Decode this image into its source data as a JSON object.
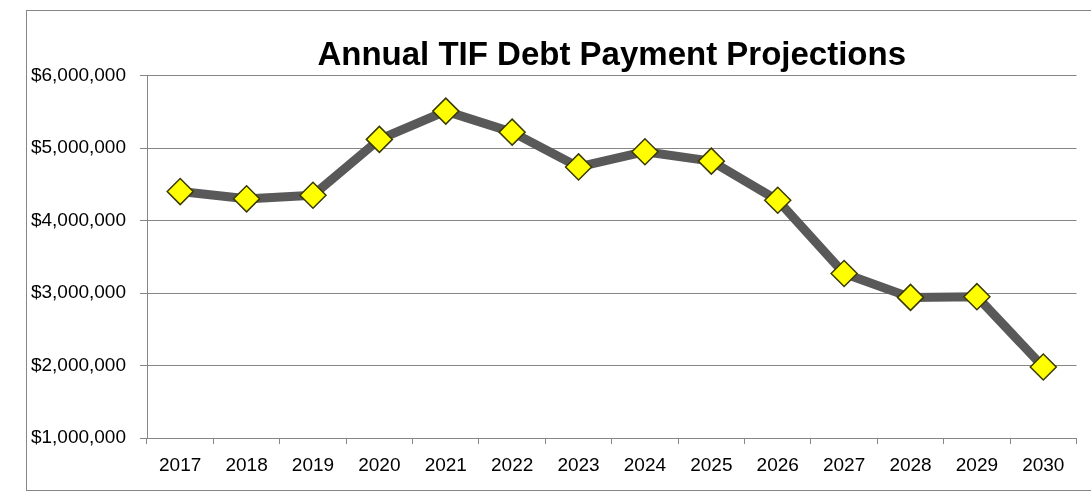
{
  "chart_data": {
    "type": "line",
    "title": "Annual TIF Debt Payment Projections",
    "categories": [
      "2017",
      "2018",
      "2019",
      "2020",
      "2021",
      "2022",
      "2023",
      "2024",
      "2025",
      "2026",
      "2027",
      "2028",
      "2029",
      "2030"
    ],
    "values": [
      4400000,
      4300000,
      4350000,
      5120000,
      5510000,
      5220000,
      4740000,
      4950000,
      4820000,
      4280000,
      3270000,
      2940000,
      2950000,
      1980000
    ],
    "color": "#595959",
    "colors": [
      "#ffff00",
      "#ffff00",
      "#ffff00",
      "#ffff00",
      "#ffff00",
      "#ffff00",
      "#ffff00",
      "#ffff00",
      "#ffff00",
      "#ffff00",
      "#ffff00",
      "#ffff00",
      "#ffff00",
      "#ffff00"
    ],
    "ylim": [
      1000000,
      6000000
    ],
    "yticks": [
      {
        "value": 1000000,
        "label": "$1,000,000"
      },
      {
        "value": 2000000,
        "label": "$2,000,000"
      },
      {
        "value": 3000000,
        "label": "$3,000,000"
      },
      {
        "value": 4000000,
        "label": "$4,000,000"
      },
      {
        "value": 5000000,
        "label": "$5,000,000"
      },
      {
        "value": 6000000,
        "label": "$6,000,000"
      }
    ],
    "grid": "y",
    "marker": "diamond",
    "line_style": "solid"
  }
}
